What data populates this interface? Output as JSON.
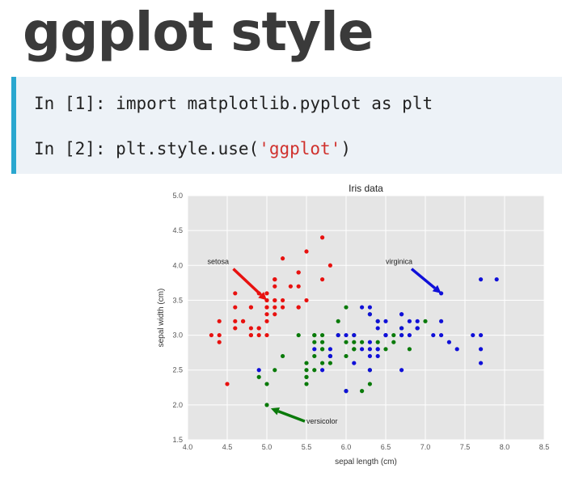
{
  "slide": {
    "title": "ggplot style"
  },
  "code": {
    "line1": {
      "prompt": "In [1]:",
      "code": "import matplotlib.pyplot as plt"
    },
    "line2": {
      "prompt": "In [2]:",
      "before": "plt.style.use(",
      "string": "'ggplot'",
      "after": ")"
    }
  },
  "colors": {
    "setosa": "#e8110f",
    "versicolor": "#0a7a0a",
    "virginica": "#1010d8",
    "code_string": "#d0312d",
    "accent_bar": "#2aa7cf"
  },
  "chart_data": {
    "type": "scatter",
    "title": "Iris data",
    "xlabel": "sepal length (cm)",
    "ylabel": "sepal width (cm)",
    "xlim": [
      4.0,
      8.5
    ],
    "ylim": [
      1.5,
      5.0
    ],
    "xticks": [
      "4.0",
      "4.5",
      "5.0",
      "5.5",
      "6.0",
      "6.5",
      "7.0",
      "7.5",
      "8.0",
      "8.5"
    ],
    "yticks": [
      "1.5",
      "2.0",
      "2.5",
      "3.0",
      "3.5",
      "4.0",
      "4.5",
      "5.0"
    ],
    "grid": true,
    "series": [
      {
        "name": "setosa",
        "color": "#e8110f",
        "x": [
          5.1,
          4.9,
          4.7,
          4.6,
          5.0,
          5.4,
          4.6,
          5.0,
          4.4,
          4.9,
          5.4,
          4.8,
          4.8,
          4.3,
          5.8,
          5.7,
          5.4,
          5.1,
          5.7,
          5.1,
          5.4,
          5.1,
          4.6,
          5.1,
          4.8,
          5.0,
          5.0,
          5.2,
          5.2,
          4.7,
          4.8,
          5.4,
          5.2,
          5.5,
          4.9,
          5.0,
          5.5,
          4.9,
          4.4,
          5.1,
          5.0,
          4.5,
          4.4,
          5.0,
          5.1,
          4.8,
          5.1,
          4.6,
          5.3,
          5.0
        ],
        "y": [
          3.5,
          3.0,
          3.2,
          3.1,
          3.6,
          3.9,
          3.4,
          3.4,
          2.9,
          3.1,
          3.7,
          3.4,
          3.0,
          3.0,
          4.0,
          4.4,
          3.9,
          3.5,
          3.8,
          3.8,
          3.4,
          3.7,
          3.6,
          3.3,
          3.4,
          3.0,
          3.4,
          3.5,
          3.4,
          3.2,
          3.1,
          3.4,
          4.1,
          4.2,
          3.1,
          3.2,
          3.5,
          3.6,
          3.0,
          3.4,
          3.5,
          2.3,
          3.2,
          3.5,
          3.8,
          3.0,
          3.8,
          3.2,
          3.7,
          3.3
        ]
      },
      {
        "name": "versicolor",
        "color": "#0a7a0a",
        "x": [
          7.0,
          6.4,
          6.9,
          5.5,
          6.5,
          5.7,
          6.3,
          4.9,
          6.6,
          5.2,
          5.0,
          5.9,
          6.0,
          6.1,
          5.6,
          6.7,
          5.6,
          5.8,
          6.2,
          5.6,
          5.9,
          6.1,
          6.3,
          6.1,
          6.4,
          6.6,
          6.8,
          6.7,
          6.0,
          5.7,
          5.5,
          5.5,
          5.8,
          6.0,
          5.4,
          6.0,
          6.7,
          6.3,
          5.6,
          5.5,
          5.5,
          6.1,
          5.8,
          5.0,
          5.6,
          5.7,
          5.7,
          6.2,
          5.1,
          5.7
        ],
        "y": [
          3.2,
          3.2,
          3.1,
          2.3,
          2.8,
          2.8,
          3.3,
          2.4,
          2.9,
          2.7,
          2.0,
          3.0,
          2.2,
          2.9,
          2.9,
          3.1,
          3.0,
          2.7,
          2.2,
          2.5,
          3.2,
          2.8,
          2.5,
          2.8,
          2.9,
          3.0,
          2.8,
          3.0,
          2.9,
          2.6,
          2.4,
          2.4,
          2.7,
          2.7,
          3.0,
          3.4,
          3.1,
          2.3,
          3.0,
          2.5,
          2.6,
          3.0,
          2.6,
          2.3,
          2.7,
          3.0,
          2.9,
          2.9,
          2.5,
          2.8
        ]
      },
      {
        "name": "virginica",
        "color": "#1010d8",
        "x": [
          6.3,
          5.8,
          7.1,
          6.3,
          6.5,
          7.6,
          4.9,
          7.3,
          6.7,
          7.2,
          6.5,
          6.4,
          6.8,
          5.7,
          5.8,
          6.4,
          6.5,
          7.7,
          7.7,
          6.0,
          6.9,
          5.6,
          7.7,
          6.3,
          6.7,
          7.2,
          6.2,
          6.1,
          6.4,
          7.2,
          7.4,
          7.9,
          6.4,
          6.3,
          6.1,
          7.7,
          6.3,
          6.4,
          6.0,
          6.9,
          6.7,
          6.9,
          5.8,
          6.8,
          6.7,
          6.7,
          6.3,
          6.5,
          6.2,
          5.9
        ],
        "y": [
          3.3,
          2.7,
          3.0,
          2.9,
          3.0,
          3.0,
          2.5,
          2.9,
          2.5,
          3.6,
          3.2,
          2.7,
          3.0,
          2.5,
          2.8,
          3.2,
          3.0,
          3.8,
          2.6,
          2.2,
          3.2,
          2.8,
          2.8,
          2.7,
          3.3,
          3.2,
          2.8,
          3.0,
          2.8,
          3.0,
          2.8,
          3.8,
          2.8,
          2.8,
          2.6,
          3.0,
          3.4,
          3.1,
          3.0,
          3.1,
          3.1,
          3.1,
          2.7,
          3.2,
          3.3,
          3.0,
          2.5,
          3.0,
          3.4,
          3.0
        ]
      }
    ],
    "annotations": [
      {
        "text": "setosa",
        "color": "#e8110f",
        "text_at": [
          4.25,
          4.02
        ],
        "arrow_to": [
          5.0,
          3.5
        ]
      },
      {
        "text": "virginica",
        "color": "#1010d8",
        "text_at": [
          6.5,
          4.02
        ],
        "arrow_to": [
          7.2,
          3.6
        ]
      },
      {
        "text": "versicolor",
        "color": "#0a7a0a",
        "text_at": [
          5.5,
          1.73
        ],
        "arrow_to": [
          5.05,
          1.95
        ]
      }
    ]
  }
}
